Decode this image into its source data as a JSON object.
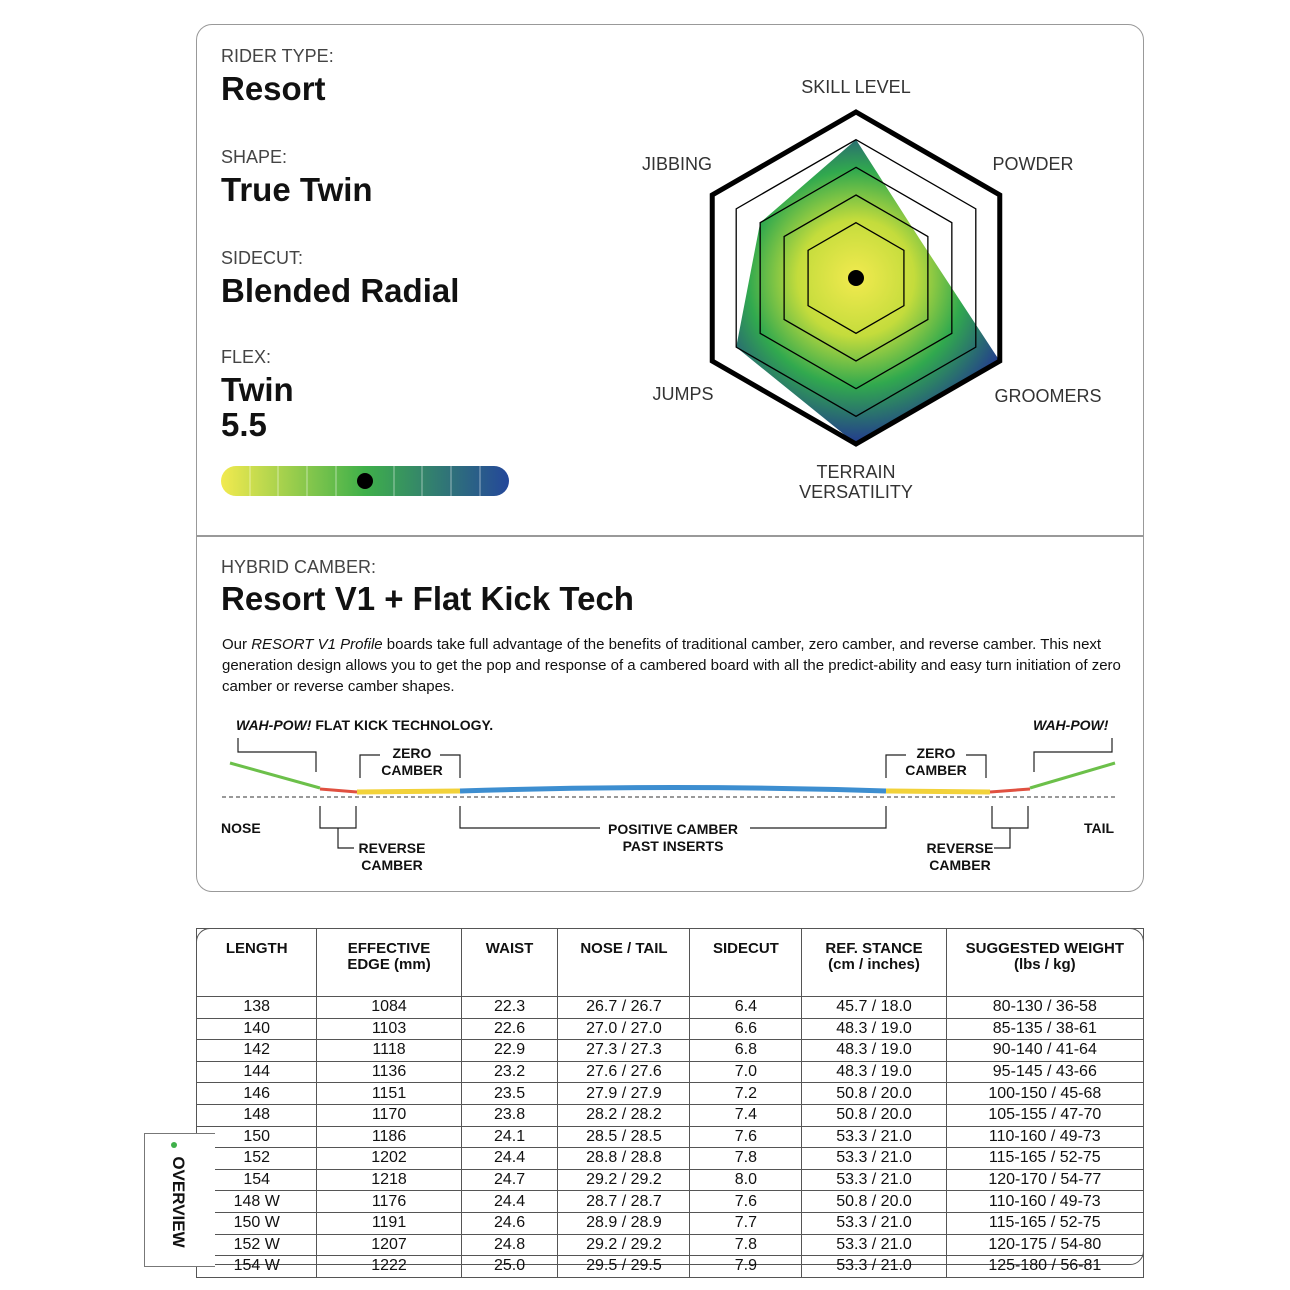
{
  "specs": [
    {
      "label": "RIDER TYPE:",
      "value": "Resort"
    },
    {
      "label": "SHAPE:",
      "value": "True Twin"
    },
    {
      "label": "SIDECUT:",
      "value": "Blended Radial"
    }
  ],
  "flex": {
    "label": "FLEX:",
    "value_text": "Twin",
    "value": 5.5,
    "range": [
      1,
      10
    ]
  },
  "radar": {
    "axes": [
      "SKILL LEVEL",
      "POWDER",
      "GROOMERS",
      [
        "TERRAIN",
        "VERSATILITY"
      ],
      "JUMPS",
      "JIBBING"
    ],
    "values": [
      5,
      2.7,
      6,
      6,
      5,
      4
    ],
    "rlim": [
      0,
      6
    ],
    "rticks": [
      2,
      3,
      4,
      5,
      6
    ]
  },
  "camber": {
    "label": "HYBRID CAMBER:",
    "title": "Resort V1 + Flat Kick Tech",
    "description": {
      "before": "Our ",
      "italic": "RESORT V1 Profile",
      "after": " boards take full advantage of the benefits of traditional camber, zero camber, and reverse camber. This next generation design allows you to get the pop and response of a cambered board with all the predict-ability and easy turn initiation of zero camber or reverse camber shapes."
    },
    "diagram": {
      "left_callout_italic": "WAH-POW!",
      "left_callout": " FLAT KICK TECHNOLOGY.",
      "right_callout": "WAH-POW!",
      "zero_camber_left": [
        "ZERO",
        "CAMBER"
      ],
      "zero_camber_right": [
        "ZERO",
        "CAMBER"
      ],
      "nose": "NOSE",
      "tail": "TAIL",
      "reverse_camber_left": [
        "REVERSE",
        "CAMBER"
      ],
      "reverse_camber_right": [
        "REVERSE",
        "CAMBER"
      ],
      "positive_camber": [
        "POSITIVE CAMBER",
        "PAST INSERTS"
      ]
    }
  },
  "table": {
    "headers": [
      [
        "LENGTH"
      ],
      [
        "EFFECTIVE",
        "EDGE (mm)"
      ],
      [
        "WAIST"
      ],
      [
        "NOSE / TAIL"
      ],
      [
        "SIDECUT"
      ],
      [
        "REF. STANCE",
        "(cm / inches)"
      ],
      [
        "SUGGESTED WEIGHT",
        "(lbs / kg)"
      ]
    ],
    "rows": [
      [
        "138",
        "1084",
        "22.3",
        "26.7 / 26.7",
        "6.4",
        "45.7 / 18.0",
        "80-130 / 36-58"
      ],
      [
        "140",
        "1103",
        "22.6",
        "27.0 / 27.0",
        "6.6",
        "48.3 / 19.0",
        "85-135 / 38-61"
      ],
      [
        "142",
        "1118",
        "22.9",
        "27.3 / 27.3",
        "6.8",
        "48.3 / 19.0",
        "90-140 / 41-64"
      ],
      [
        "144",
        "1136",
        "23.2",
        "27.6 / 27.6",
        "7.0",
        "48.3 / 19.0",
        "95-145 / 43-66"
      ],
      [
        "146",
        "1151",
        "23.5",
        "27.9 / 27.9",
        "7.2",
        "50.8 / 20.0",
        "100-150 / 45-68"
      ],
      [
        "148",
        "1170",
        "23.8",
        "28.2 / 28.2",
        "7.4",
        "50.8 / 20.0",
        "105-155 / 47-70"
      ],
      [
        "150",
        "1186",
        "24.1",
        "28.5 / 28.5",
        "7.6",
        "53.3 / 21.0",
        "110-160 / 49-73"
      ],
      [
        "152",
        "1202",
        "24.4",
        "28.8 / 28.8",
        "7.8",
        "53.3 / 21.0",
        "115-165 / 52-75"
      ],
      [
        "154",
        "1218",
        "24.7",
        "29.2 / 29.2",
        "8.0",
        "53.3 / 21.0",
        "120-170 / 54-77"
      ],
      [
        "148 W",
        "1176",
        "24.4",
        "28.7 / 28.7",
        "7.6",
        "50.8 / 20.0",
        "110-160 / 49-73"
      ],
      [
        "150 W",
        "1191",
        "24.6",
        "28.9 / 28.9",
        "7.7",
        "53.3 / 21.0",
        "115-165 / 52-75"
      ],
      [
        "152 W",
        "1207",
        "24.8",
        "29.2 / 29.2",
        "7.8",
        "53.3 / 21.0",
        "120-175 / 54-80"
      ],
      [
        "154 W",
        "1222",
        "25.0",
        "29.5 / 29.5",
        "7.9",
        "53.3 / 21.0",
        "125-180 / 56-81"
      ]
    ]
  },
  "tab": "OVERVIEW"
}
